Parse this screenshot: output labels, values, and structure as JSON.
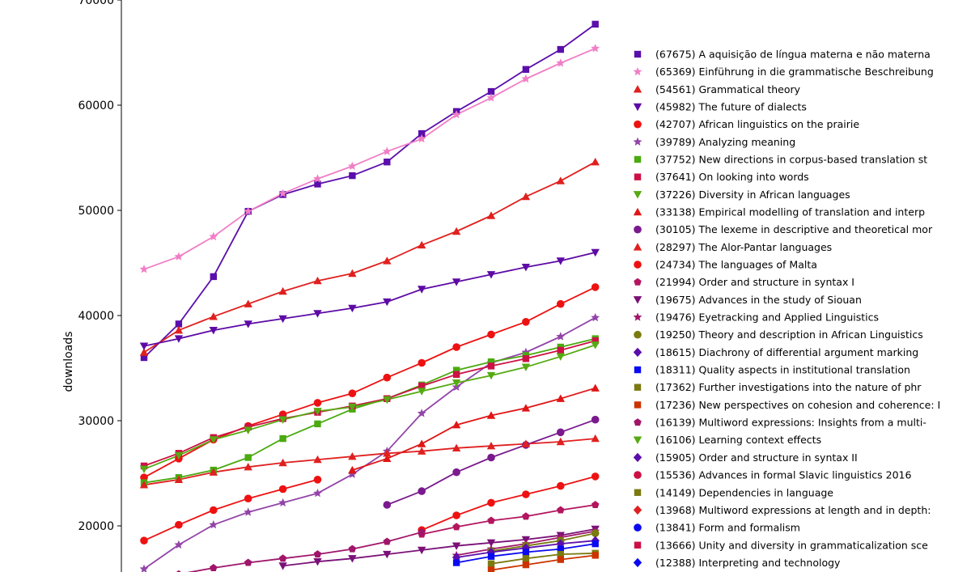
{
  "chart_data": {
    "type": "line",
    "title": "",
    "xlabel": "",
    "ylabel": "downloads",
    "ylim": [
      15500,
      70000
    ],
    "xlim": [
      0,
      14
    ],
    "y_ticks": [
      20000,
      30000,
      40000,
      50000,
      60000,
      70000
    ],
    "y_tick_labels": [
      "20000",
      "30000",
      "40000",
      "50000",
      "60000",
      "70000"
    ],
    "legend_position": "right",
    "grid": false,
    "x": [
      0,
      1,
      2,
      3,
      4,
      5,
      6,
      7,
      8,
      9,
      10,
      11,
      12,
      13
    ],
    "series": [
      {
        "name": "(67675) A aquisição de língua materna e não materna",
        "color": "#5a0eab",
        "marker": "square",
        "values": [
          36000,
          39200,
          43700,
          49900,
          51500,
          52500,
          53300,
          54600,
          57300,
          59400,
          61300,
          63400,
          65300,
          67700
        ]
      },
      {
        "name": "(65369) Einführung in die grammatische Beschreibung",
        "color": "#f07fc6",
        "marker": "star",
        "values": [
          44400,
          45600,
          47500,
          49900,
          51600,
          53000,
          54200,
          55600,
          56800,
          59100,
          60700,
          62500,
          64000,
          65400
        ]
      },
      {
        "name": "(54561) Grammatical theory",
        "color": "#e0201e",
        "marker": "triangle-up",
        "values": [
          36500,
          38600,
          39900,
          41100,
          42300,
          43300,
          44000,
          45200,
          46700,
          48000,
          49500,
          51300,
          52800,
          54600
        ]
      },
      {
        "name": "(45982) The future of dialects",
        "color": "#5d0aa5",
        "marker": "triangle-down",
        "values": [
          37100,
          37800,
          38600,
          39200,
          39700,
          40200,
          40700,
          41300,
          42500,
          43200,
          43900,
          44600,
          45200,
          46000
        ]
      },
      {
        "name": "(42707) African linguistics on the prairie",
        "color": "#ee1111",
        "marker": "circle",
        "values": [
          24600,
          26400,
          28200,
          29500,
          30600,
          31700,
          32600,
          34100,
          35500,
          37000,
          38200,
          39400,
          41100,
          42700
        ]
      },
      {
        "name": "(39789) Analyzing meaning",
        "color": "#9244a8",
        "marker": "star",
        "values": [
          15900,
          18200,
          20100,
          21300,
          22200,
          23100,
          24900,
          27100,
          30700,
          33200,
          35500,
          36500,
          38000,
          39800
        ]
      },
      {
        "name": "(37752) New directions in corpus-based translation st",
        "color": "#4aaa10",
        "marker": "square",
        "values": [
          24100,
          24600,
          25300,
          26500,
          28300,
          29700,
          31100,
          32100,
          33400,
          34800,
          35600,
          36200,
          37000,
          37800
        ]
      },
      {
        "name": "(37641) On looking into words",
        "color": "#cc1144",
        "marker": "square",
        "values": [
          25700,
          26900,
          28400,
          29400,
          30200,
          30800,
          31400,
          32100,
          33300,
          34400,
          35200,
          35900,
          36700,
          37600
        ]
      },
      {
        "name": "(37226) Diversity in African languages",
        "color": "#55aa11",
        "marker": "triangle-down",
        "values": [
          25400,
          26700,
          28200,
          29100,
          30100,
          30900,
          31300,
          32000,
          32800,
          33600,
          34300,
          35100,
          36100,
          37200
        ]
      },
      {
        "name": "(33138) Empirical modelling of translation and interp",
        "color": "#e01515",
        "marker": "triangle-up",
        "values": [
          null,
          null,
          null,
          null,
          null,
          null,
          25300,
          26400,
          27800,
          29600,
          30500,
          31200,
          32100,
          33100
        ]
      },
      {
        "name": "(30105) The lexeme in descriptive and theoretical mor",
        "color": "#7a1a8e",
        "marker": "circle",
        "values": [
          null,
          null,
          null,
          null,
          null,
          null,
          null,
          22000,
          23300,
          25100,
          26500,
          27700,
          28900,
          30100
        ]
      },
      {
        "name": "(28297) The Alor-Pantar languages",
        "color": "#e02020",
        "marker": "triangle-up",
        "values": [
          23900,
          24400,
          25100,
          25600,
          26000,
          26300,
          26600,
          26900,
          27100,
          27400,
          27600,
          27800,
          28000,
          28300
        ]
      },
      {
        "name": "(24734) The languages of Malta",
        "color": "#ee1111",
        "marker": "circle",
        "values": [
          18600,
          20100,
          21500,
          22600,
          23500,
          24400,
          null,
          null,
          19600,
          21000,
          22200,
          23000,
          23800,
          24700
        ]
      },
      {
        "name": "(21994) Order and structure in syntax I",
        "color": "#b3155f",
        "marker": "pentagon",
        "values": [
          null,
          null,
          null,
          null,
          null,
          null,
          null,
          null,
          19200,
          19900,
          20500,
          20900,
          21500,
          22000
        ]
      },
      {
        "name": "(19675) Advances in the study of Siouan",
        "color": "#7a1078",
        "marker": "triangle-down",
        "values": [
          null,
          null,
          null,
          null,
          16200,
          16600,
          16900,
          17300,
          17700,
          18100,
          18400,
          18700,
          19100,
          19700
        ]
      },
      {
        "name": "(19476) Eyetracking and Applied Linguistics",
        "color": "#a0156a",
        "marker": "star",
        "values": [
          null,
          null,
          null,
          null,
          null,
          null,
          null,
          null,
          null,
          17200,
          17800,
          18300,
          18900,
          19500
        ]
      },
      {
        "name": "(19250) Theory and description in African Linguistics",
        "color": "#7a7a10",
        "marker": "circle",
        "values": [
          null,
          null,
          null,
          null,
          null,
          null,
          null,
          null,
          null,
          null,
          17600,
          18100,
          18600,
          19300
        ]
      },
      {
        "name": "(18615) Diachrony of differential argument marking",
        "color": "#5a0eab",
        "marker": "diamond",
        "values": [
          null,
          null,
          null,
          null,
          null,
          null,
          null,
          null,
          null,
          17000,
          17500,
          17900,
          18300,
          18600
        ]
      },
      {
        "name": "(18311) Quality aspects in institutional translation",
        "color": "#0a0af0",
        "marker": "square",
        "values": [
          null,
          null,
          null,
          null,
          null,
          null,
          null,
          null,
          null,
          16500,
          17100,
          17500,
          17800,
          18300
        ]
      },
      {
        "name": "(17362) Further investigations into the nature of phr",
        "color": "#7a7a10",
        "marker": "square",
        "values": [
          null,
          null,
          null,
          null,
          null,
          null,
          null,
          null,
          null,
          null,
          16400,
          16900,
          17300,
          17400
        ]
      },
      {
        "name": "(17236) New perspectives on cohesion and coherence: I",
        "color": "#cc3300",
        "marker": "square",
        "values": [
          null,
          null,
          null,
          null,
          null,
          null,
          null,
          null,
          null,
          null,
          15800,
          16300,
          16800,
          17200
        ]
      },
      {
        "name": "(16139) Multiword expressions: Insights from a multi-",
        "color": "#a0156a",
        "marker": "pentagon",
        "values": [
          null,
          15400,
          16000,
          16500,
          16900,
          17300,
          17800,
          18500,
          19400,
          null,
          null,
          null,
          null,
          null
        ]
      }
    ],
    "legend_only": [
      {
        "name": "(16106) Learning context effects",
        "color": "#55aa11",
        "marker": "triangle-down"
      },
      {
        "name": "(15905) Order and structure in syntax II",
        "color": "#5a0eab",
        "marker": "diamond"
      },
      {
        "name": "(15536) Advances in formal Slavic linguistics 2016",
        "color": "#cc1144",
        "marker": "circle"
      },
      {
        "name": "(14149) Dependencies in language",
        "color": "#7a7a10",
        "marker": "square"
      },
      {
        "name": "(13968) Multiword expressions at length and in depth:",
        "color": "#e02020",
        "marker": "diamond"
      },
      {
        "name": "(13841) Form and formalism",
        "color": "#0a0af0",
        "marker": "circle"
      },
      {
        "name": "(13666) Unity and diversity in grammaticalization sce",
        "color": "#cc1144",
        "marker": "square"
      },
      {
        "name": "(12388) Interpreting and technology",
        "color": "#0a0af0",
        "marker": "diamond"
      }
    ]
  }
}
